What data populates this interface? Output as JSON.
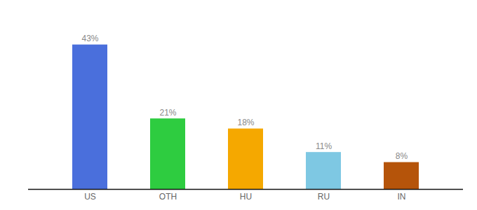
{
  "chart_data": {
    "type": "bar",
    "categories": [
      "US",
      "OTH",
      "HU",
      "RU",
      "IN"
    ],
    "values": [
      43,
      21,
      18,
      11,
      8
    ],
    "value_labels": [
      "43%",
      "21%",
      "18%",
      "11%",
      "8%"
    ],
    "colors": [
      "#4a6fdc",
      "#2ecc40",
      "#f5a800",
      "#7ec8e3",
      "#b5540a"
    ],
    "data_labels": true,
    "ylim": [
      0,
      50
    ],
    "tick_labels": "x",
    "grid": false
  }
}
